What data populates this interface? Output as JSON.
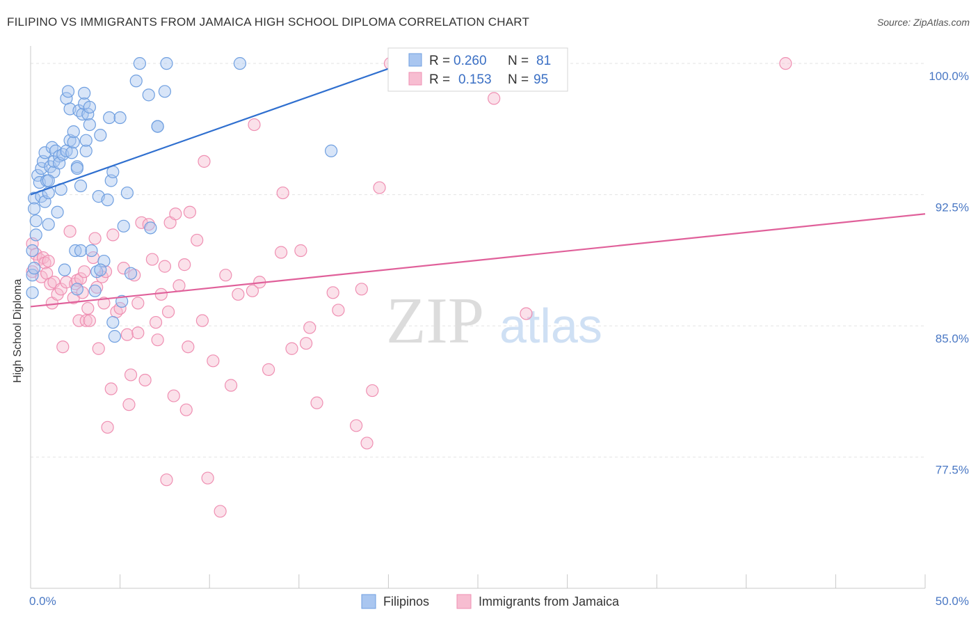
{
  "chart_data": {
    "type": "scatter",
    "title": "FILIPINO VS IMMIGRANTS FROM JAMAICA HIGH SCHOOL DIPLOMA CORRELATION CHART",
    "source": "Source: ZipAtlas.com",
    "xlabel": "",
    "ylabel": "High School Diploma",
    "xlim": [
      0,
      50
    ],
    "ylim": [
      70.0,
      101.0
    ],
    "x_tick_labels": [
      "0.0%",
      "50.0%"
    ],
    "y_ticks": [
      {
        "value": 100.0,
        "label": "100.0%"
      },
      {
        "value": 92.5,
        "label": "92.5%"
      },
      {
        "value": 85.0,
        "label": "85.0%"
      },
      {
        "value": 77.5,
        "label": "77.5%"
      }
    ],
    "watermark": {
      "zip": "ZIP",
      "atlas": "atlas"
    },
    "legend": {
      "r_label": "R =",
      "n_label": "N =",
      "entries": [
        {
          "name": "Filipinos",
          "r": "0.260",
          "n": "81"
        },
        {
          "name": "Immigrants from Jamaica",
          "r": "0.153",
          "n": "95"
        }
      ]
    },
    "series": [
      {
        "name": "Filipinos",
        "color": "#6f9fe0",
        "fill": "#a9c6f0",
        "line_color": "#2f6fcf",
        "trend": {
          "x": [
            0,
            20
          ],
          "y": [
            92.5,
            99.7
          ]
        },
        "points": [
          [
            0.1,
            89.3
          ],
          [
            0.1,
            87.9
          ],
          [
            0.1,
            86.9
          ],
          [
            0.2,
            92.3
          ],
          [
            0.2,
            91.7
          ],
          [
            0.3,
            91.0
          ],
          [
            0.3,
            90.2
          ],
          [
            0.4,
            93.6
          ],
          [
            0.5,
            93.2
          ],
          [
            0.6,
            92.4
          ],
          [
            0.6,
            94.0
          ],
          [
            0.7,
            94.4
          ],
          [
            0.8,
            94.9
          ],
          [
            0.8,
            92.1
          ],
          [
            0.9,
            93.3
          ],
          [
            1.0,
            92.6
          ],
          [
            1.0,
            90.8
          ],
          [
            1.1,
            94.1
          ],
          [
            1.2,
            95.2
          ],
          [
            1.3,
            93.8
          ],
          [
            1.3,
            94.4
          ],
          [
            1.4,
            95.0
          ],
          [
            1.5,
            91.5
          ],
          [
            1.6,
            94.7
          ],
          [
            1.6,
            94.3
          ],
          [
            1.7,
            92.8
          ],
          [
            1.8,
            94.8
          ],
          [
            1.9,
            88.2
          ],
          [
            2.0,
            95.0
          ],
          [
            2.0,
            98.0
          ],
          [
            2.1,
            98.4
          ],
          [
            2.2,
            95.6
          ],
          [
            2.2,
            97.4
          ],
          [
            2.3,
            94.9
          ],
          [
            2.4,
            95.5
          ],
          [
            2.4,
            96.1
          ],
          [
            2.5,
            89.3
          ],
          [
            2.6,
            94.1
          ],
          [
            2.6,
            94.0
          ],
          [
            2.7,
            97.3
          ],
          [
            2.8,
            93.0
          ],
          [
            2.8,
            89.3
          ],
          [
            2.9,
            97.1
          ],
          [
            3.0,
            97.7
          ],
          [
            3.0,
            98.3
          ],
          [
            3.1,
            95.0
          ],
          [
            3.1,
            95.6
          ],
          [
            3.2,
            97.1
          ],
          [
            3.3,
            96.5
          ],
          [
            3.3,
            97.5
          ],
          [
            3.4,
            89.3
          ],
          [
            3.6,
            87.0
          ],
          [
            3.7,
            88.1
          ],
          [
            3.8,
            92.4
          ],
          [
            3.9,
            95.9
          ],
          [
            4.1,
            88.7
          ],
          [
            4.3,
            92.2
          ],
          [
            4.4,
            96.9
          ],
          [
            4.5,
            93.3
          ],
          [
            4.6,
            93.8
          ],
          [
            4.6,
            85.2
          ],
          [
            4.7,
            84.4
          ],
          [
            5.0,
            96.9
          ],
          [
            5.1,
            86.4
          ],
          [
            5.2,
            90.7
          ],
          [
            5.4,
            92.6
          ],
          [
            5.6,
            88.0
          ],
          [
            5.9,
            99.0
          ],
          [
            6.1,
            100.0
          ],
          [
            6.6,
            98.2
          ],
          [
            6.7,
            90.6
          ],
          [
            7.1,
            96.4
          ],
          [
            7.1,
            96.4
          ],
          [
            7.5,
            98.4
          ],
          [
            7.6,
            100.0
          ],
          [
            11.7,
            100.0
          ],
          [
            16.8,
            95.0
          ],
          [
            0.2,
            88.3
          ],
          [
            2.6,
            87.1
          ],
          [
            1.0,
            93.3
          ],
          [
            3.9,
            88.2
          ]
        ]
      },
      {
        "name": "Immigrants from Jamaica",
        "color": "#ef8fb2",
        "fill": "#f7bdd1",
        "line_color": "#e0609a",
        "trend": {
          "x": [
            0,
            50
          ],
          "y": [
            86.1,
            91.4
          ]
        },
        "points": [
          [
            0.1,
            89.7
          ],
          [
            0.1,
            88.1
          ],
          [
            0.3,
            89.1
          ],
          [
            0.5,
            88.8
          ],
          [
            0.6,
            87.8
          ],
          [
            0.7,
            88.9
          ],
          [
            0.8,
            88.6
          ],
          [
            0.9,
            88.0
          ],
          [
            1.0,
            88.7
          ],
          [
            1.1,
            87.4
          ],
          [
            1.2,
            86.3
          ],
          [
            1.3,
            87.5
          ],
          [
            1.5,
            86.8
          ],
          [
            1.7,
            87.1
          ],
          [
            1.8,
            83.8
          ],
          [
            2.0,
            87.5
          ],
          [
            2.2,
            90.4
          ],
          [
            2.4,
            86.6
          ],
          [
            2.5,
            87.4
          ],
          [
            2.6,
            87.6
          ],
          [
            2.7,
            85.3
          ],
          [
            2.8,
            87.7
          ],
          [
            2.9,
            86.9
          ],
          [
            3.0,
            88.1
          ],
          [
            3.1,
            85.3
          ],
          [
            3.2,
            86.0
          ],
          [
            3.3,
            85.3
          ],
          [
            3.5,
            88.9
          ],
          [
            3.6,
            90.0
          ],
          [
            3.7,
            87.2
          ],
          [
            3.8,
            83.7
          ],
          [
            4.0,
            87.8
          ],
          [
            4.1,
            86.3
          ],
          [
            4.2,
            88.1
          ],
          [
            4.3,
            79.2
          ],
          [
            4.5,
            81.4
          ],
          [
            4.6,
            90.2
          ],
          [
            4.8,
            85.8
          ],
          [
            5.0,
            86.0
          ],
          [
            5.2,
            88.3
          ],
          [
            5.4,
            84.5
          ],
          [
            5.5,
            80.5
          ],
          [
            5.6,
            82.2
          ],
          [
            5.8,
            87.9
          ],
          [
            6.0,
            86.3
          ],
          [
            6.0,
            84.6
          ],
          [
            6.2,
            90.9
          ],
          [
            6.4,
            81.9
          ],
          [
            6.6,
            90.8
          ],
          [
            6.8,
            88.8
          ],
          [
            7.0,
            85.2
          ],
          [
            7.1,
            84.2
          ],
          [
            7.3,
            86.8
          ],
          [
            7.5,
            88.4
          ],
          [
            7.6,
            76.2
          ],
          [
            7.7,
            85.8
          ],
          [
            7.8,
            90.9
          ],
          [
            8.0,
            81.0
          ],
          [
            8.1,
            91.4
          ],
          [
            8.3,
            87.3
          ],
          [
            8.6,
            88.5
          ],
          [
            8.7,
            80.2
          ],
          [
            8.8,
            83.8
          ],
          [
            8.9,
            91.5
          ],
          [
            9.3,
            89.9
          ],
          [
            9.6,
            85.3
          ],
          [
            9.7,
            94.4
          ],
          [
            9.9,
            76.3
          ],
          [
            10.2,
            83.0
          ],
          [
            10.6,
            74.4
          ],
          [
            10.9,
            87.9
          ],
          [
            11.2,
            81.6
          ],
          [
            11.6,
            86.8
          ],
          [
            12.4,
            87.0
          ],
          [
            12.5,
            96.5
          ],
          [
            12.8,
            87.5
          ],
          [
            13.3,
            82.5
          ],
          [
            14.0,
            89.2
          ],
          [
            14.1,
            92.6
          ],
          [
            14.6,
            83.7
          ],
          [
            15.1,
            89.3
          ],
          [
            15.4,
            84.0
          ],
          [
            15.6,
            84.9
          ],
          [
            16.0,
            80.6
          ],
          [
            16.9,
            86.9
          ],
          [
            17.2,
            85.9
          ],
          [
            18.2,
            79.3
          ],
          [
            18.5,
            87.1
          ],
          [
            18.8,
            78.3
          ],
          [
            19.1,
            81.3
          ],
          [
            19.5,
            92.9
          ],
          [
            20.1,
            100.0
          ],
          [
            25.9,
            98.0
          ],
          [
            27.7,
            85.7
          ],
          [
            42.2,
            100.0
          ]
        ]
      }
    ]
  }
}
